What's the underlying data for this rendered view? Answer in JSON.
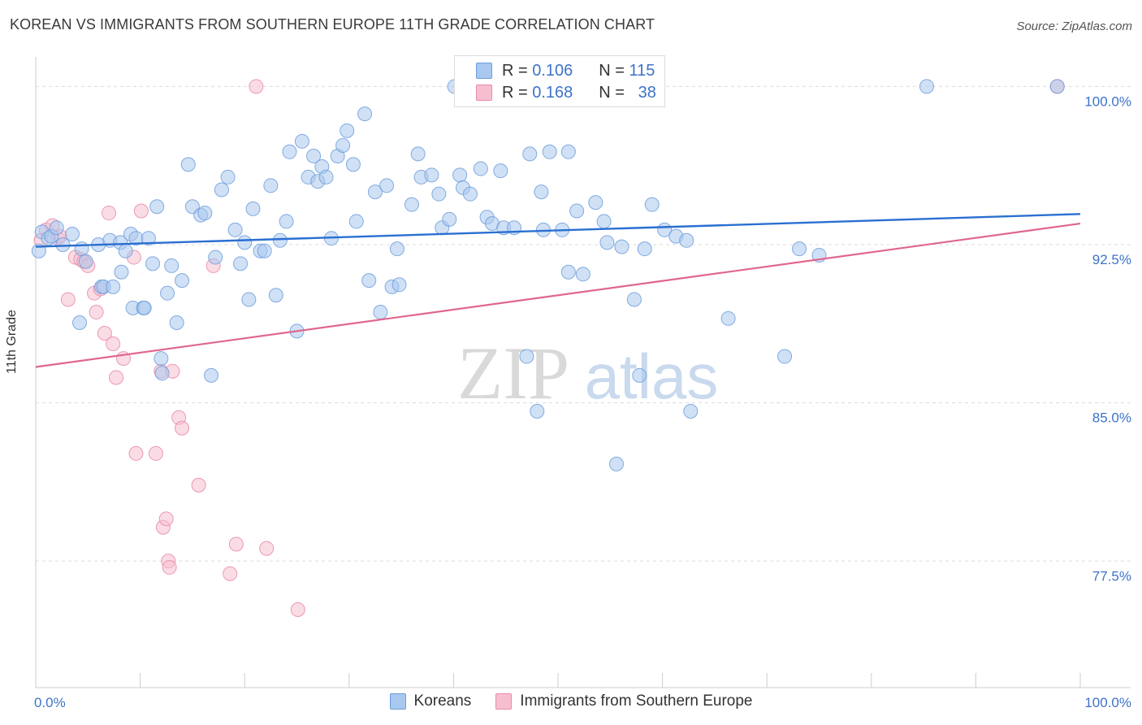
{
  "title": "KOREAN VS IMMIGRANTS FROM SOUTHERN EUROPE 11TH GRADE CORRELATION CHART",
  "source": "Source: ZipAtlas.com",
  "watermark": {
    "zip": "ZIP",
    "atlas": "atlas"
  },
  "colors": {
    "blue_fill": "#a9c8ef",
    "blue_stroke": "#6e9ddc",
    "blue_line": "#2a6fd1",
    "pink_fill": "#f6bfd0",
    "pink_stroke": "#e98aa8",
    "pink_line": "#e0668f",
    "axis_label": "#3d73c9",
    "grid": "#dcdcdc"
  },
  "legend": {
    "rows": [
      {
        "r_label": "R =",
        "r_value": "0.106",
        "n_label": "N =",
        "n_value": "115"
      },
      {
        "r_label": "R =",
        "r_value": "0.168",
        "n_label": "N =",
        "n_value": "38"
      }
    ]
  },
  "chart_data": {
    "type": "scatter",
    "title": "KOREAN VS IMMIGRANTS FROM SOUTHERN EUROPE 11TH GRADE CORRELATION CHART",
    "xlabel": "",
    "ylabel": "11th Grade",
    "xlim": [
      0,
      100
    ],
    "ylim": [
      71.5,
      101.4
    ],
    "x_tick_labels": [
      "0.0%",
      "100.0%"
    ],
    "y_ticks": [
      100.0,
      92.5,
      85.0,
      77.5
    ],
    "y_tick_labels": [
      "100.0%",
      "92.5%",
      "85.0%",
      "77.5%"
    ],
    "series": [
      {
        "name": "Koreans",
        "r": 0.106,
        "n": 115,
        "trend": {
          "x": [
            0,
            100
          ],
          "y": [
            92.4,
            93.95
          ]
        },
        "points": [
          [
            0.3,
            92.2
          ],
          [
            0.6,
            93.1
          ],
          [
            1.2,
            92.8
          ],
          [
            1.5,
            92.9
          ],
          [
            2.0,
            93.3
          ],
          [
            2.6,
            92.5
          ],
          [
            3.5,
            93.0
          ],
          [
            4.2,
            88.8
          ],
          [
            4.4,
            92.3
          ],
          [
            4.8,
            91.7
          ],
          [
            6.0,
            92.5
          ],
          [
            6.3,
            90.5
          ],
          [
            6.5,
            90.5
          ],
          [
            7.1,
            92.7
          ],
          [
            7.4,
            90.5
          ],
          [
            8.1,
            92.6
          ],
          [
            8.2,
            91.2
          ],
          [
            8.6,
            92.2
          ],
          [
            9.1,
            93.0
          ],
          [
            9.6,
            92.8
          ],
          [
            9.3,
            89.5
          ],
          [
            10.3,
            89.5
          ],
          [
            10.4,
            89.5
          ],
          [
            10.8,
            92.8
          ],
          [
            11.2,
            91.6
          ],
          [
            11.6,
            94.3
          ],
          [
            12.0,
            87.1
          ],
          [
            12.1,
            86.4
          ],
          [
            12.6,
            90.2
          ],
          [
            13.0,
            91.5
          ],
          [
            13.5,
            88.8
          ],
          [
            14.0,
            90.8
          ],
          [
            14.6,
            96.3
          ],
          [
            15.0,
            94.3
          ],
          [
            15.8,
            93.9
          ],
          [
            16.2,
            94.0
          ],
          [
            16.8,
            86.3
          ],
          [
            17.2,
            91.9
          ],
          [
            17.8,
            95.1
          ],
          [
            18.4,
            95.7
          ],
          [
            19.1,
            93.2
          ],
          [
            19.6,
            91.6
          ],
          [
            20.0,
            92.6
          ],
          [
            20.4,
            89.9
          ],
          [
            20.8,
            94.2
          ],
          [
            21.5,
            92.2
          ],
          [
            21.9,
            92.2
          ],
          [
            22.5,
            95.3
          ],
          [
            23.0,
            90.1
          ],
          [
            23.4,
            92.7
          ],
          [
            24.0,
            93.6
          ],
          [
            24.3,
            96.9
          ],
          [
            25.0,
            88.4
          ],
          [
            25.5,
            97.4
          ],
          [
            26.1,
            95.7
          ],
          [
            26.6,
            96.7
          ],
          [
            27.0,
            95.5
          ],
          [
            27.4,
            96.2
          ],
          [
            27.8,
            95.7
          ],
          [
            28.3,
            92.8
          ],
          [
            28.9,
            96.7
          ],
          [
            29.4,
            97.2
          ],
          [
            29.8,
            97.9
          ],
          [
            30.4,
            96.3
          ],
          [
            30.7,
            93.6
          ],
          [
            31.5,
            98.7
          ],
          [
            31.9,
            90.8
          ],
          [
            32.5,
            95.0
          ],
          [
            33.0,
            89.3
          ],
          [
            33.6,
            95.3
          ],
          [
            34.1,
            90.5
          ],
          [
            34.6,
            92.3
          ],
          [
            34.8,
            90.6
          ],
          [
            36.0,
            94.4
          ],
          [
            36.6,
            96.8
          ],
          [
            36.9,
            95.7
          ],
          [
            37.9,
            95.8
          ],
          [
            38.6,
            94.9
          ],
          [
            38.9,
            93.3
          ],
          [
            39.6,
            93.7
          ],
          [
            40.6,
            95.8
          ],
          [
            40.9,
            95.2
          ],
          [
            41.6,
            94.9
          ],
          [
            42.6,
            96.1
          ],
          [
            43.2,
            93.8
          ],
          [
            43.7,
            93.5
          ],
          [
            44.5,
            96.0
          ],
          [
            44.8,
            93.3
          ],
          [
            45.8,
            93.3
          ],
          [
            47.0,
            87.2
          ],
          [
            47.3,
            96.8
          ],
          [
            48.0,
            84.6
          ],
          [
            48.4,
            95.0
          ],
          [
            48.6,
            93.2
          ],
          [
            49.2,
            96.9
          ],
          [
            50.4,
            93.2
          ],
          [
            51.0,
            96.9
          ],
          [
            51.0,
            91.2
          ],
          [
            51.8,
            94.1
          ],
          [
            52.4,
            91.1
          ],
          [
            53.6,
            94.5
          ],
          [
            54.4,
            93.6
          ],
          [
            54.7,
            92.6
          ],
          [
            55.6,
            82.1
          ],
          [
            56.1,
            92.4
          ],
          [
            57.3,
            89.9
          ],
          [
            57.8,
            86.3
          ],
          [
            58.3,
            92.3
          ],
          [
            59.0,
            94.4
          ],
          [
            60.2,
            93.2
          ],
          [
            61.3,
            92.9
          ],
          [
            62.3,
            92.7
          ],
          [
            62.7,
            84.6
          ],
          [
            66.3,
            89.0
          ],
          [
            71.7,
            87.2
          ],
          [
            73.1,
            92.3
          ],
          [
            75.0,
            92.0
          ],
          [
            85.3,
            100.0
          ],
          [
            97.8,
            100.0
          ],
          [
            40.1,
            100.0
          ]
        ]
      },
      {
        "name": "Immigrants from Southern Europe",
        "r": 0.168,
        "n": 38,
        "trend": {
          "x": [
            0,
            100
          ],
          "y": [
            86.7,
            93.5
          ]
        },
        "points": [
          [
            0.5,
            92.7
          ],
          [
            1.0,
            93.2
          ],
          [
            1.6,
            93.4
          ],
          [
            2.1,
            92.8
          ],
          [
            2.3,
            92.9
          ],
          [
            3.1,
            89.9
          ],
          [
            3.8,
            91.9
          ],
          [
            4.3,
            91.8
          ],
          [
            4.6,
            91.7
          ],
          [
            5.0,
            91.5
          ],
          [
            5.6,
            90.2
          ],
          [
            5.8,
            89.3
          ],
          [
            6.2,
            90.4
          ],
          [
            6.6,
            88.3
          ],
          [
            7.0,
            94.0
          ],
          [
            7.4,
            87.8
          ],
          [
            7.7,
            86.2
          ],
          [
            8.4,
            87.1
          ],
          [
            9.4,
            91.9
          ],
          [
            9.6,
            82.6
          ],
          [
            10.1,
            94.1
          ],
          [
            11.5,
            82.6
          ],
          [
            12.0,
            86.5
          ],
          [
            12.2,
            79.1
          ],
          [
            12.5,
            79.5
          ],
          [
            12.7,
            77.5
          ],
          [
            12.8,
            77.2
          ],
          [
            13.1,
            86.5
          ],
          [
            13.7,
            84.3
          ],
          [
            14.0,
            83.8
          ],
          [
            15.6,
            81.1
          ],
          [
            17.0,
            91.5
          ],
          [
            18.6,
            76.9
          ],
          [
            19.2,
            78.3
          ],
          [
            21.1,
            100.0
          ],
          [
            22.1,
            78.1
          ],
          [
            25.1,
            75.2
          ],
          [
            97.8,
            100.0
          ]
        ]
      }
    ]
  },
  "bottom_legend": [
    {
      "label": "Koreans"
    },
    {
      "label": "Immigrants from Southern Europe"
    }
  ]
}
